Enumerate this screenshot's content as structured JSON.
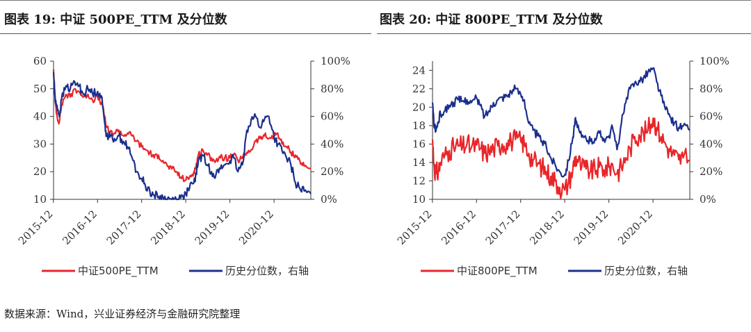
{
  "titles": {
    "left": "图表 19: 中证 500PE_TTM 及分位数",
    "right": "图表 20: 中证 800PE_TTM 及分位数"
  },
  "source": "数据来源：Wind，兴业证券经济与金融研究院整理",
  "colors": {
    "pe": "#e8262a",
    "pct": "#1c2f8c",
    "axis": "#333333"
  },
  "chart_data": [
    {
      "type": "line",
      "title": "图表 19: 中证 500PE_TTM 及分位数",
      "x_ticks": [
        "2015-12",
        "2016-12",
        "2017-12",
        "2018-12",
        "2019-12",
        "2020-12"
      ],
      "x_range": [
        2015.92,
        2021.75
      ],
      "y_left": {
        "range": [
          10,
          60
        ],
        "ticks": [
          "10",
          "20",
          "30",
          "40",
          "50",
          "60"
        ]
      },
      "y_right": {
        "range": [
          0,
          100
        ],
        "ticks": [
          "0%",
          "20%",
          "40%",
          "60%",
          "80%",
          "100%"
        ]
      },
      "legend": [
        "中证500PE_TTM",
        "历史分位数，右轴"
      ],
      "series": [
        {
          "name": "中证500PE_TTM",
          "axis": "left",
          "x": [
            2015.92,
            2015.96,
            2016.0,
            2016.05,
            2016.1,
            2016.2,
            2016.3,
            2016.4,
            2016.5,
            2016.6,
            2016.7,
            2016.8,
            2016.92,
            2017.0,
            2017.08,
            2017.12,
            2017.2,
            2017.3,
            2017.4,
            2017.5,
            2017.6,
            2017.7,
            2017.8,
            2017.92,
            2018.0,
            2018.1,
            2018.2,
            2018.3,
            2018.4,
            2018.5,
            2018.6,
            2018.7,
            2018.8,
            2018.92,
            2019.0,
            2019.1,
            2019.15,
            2019.2,
            2019.3,
            2019.4,
            2019.5,
            2019.6,
            2019.7,
            2019.8,
            2019.92,
            2020.0,
            2020.1,
            2020.2,
            2020.3,
            2020.4,
            2020.5,
            2020.6,
            2020.7,
            2020.8,
            2020.92,
            2021.0,
            2021.1,
            2021.2,
            2021.3,
            2021.4,
            2021.5,
            2021.6,
            2021.75
          ],
          "values": [
            57,
            45,
            40,
            38,
            44,
            48,
            47,
            50,
            49,
            47,
            48,
            46,
            47,
            45,
            40,
            36,
            34,
            34,
            35,
            33,
            34,
            33,
            31,
            29,
            28,
            27,
            25,
            26,
            24,
            22,
            21,
            20,
            18,
            17,
            18,
            20,
            22,
            26,
            28,
            26,
            25,
            24,
            25,
            25,
            25,
            26,
            24,
            25,
            27,
            28,
            31,
            32,
            33,
            32,
            33,
            34,
            30,
            29,
            27,
            26,
            24,
            22,
            21
          ]
        },
        {
          "name": "历史分位数，右轴",
          "axis": "right",
          "x": [
            2015.92,
            2015.96,
            2016.0,
            2016.05,
            2016.1,
            2016.2,
            2016.3,
            2016.4,
            2016.5,
            2016.6,
            2016.7,
            2016.8,
            2016.92,
            2017.0,
            2017.08,
            2017.12,
            2017.2,
            2017.3,
            2017.4,
            2017.5,
            2017.6,
            2017.7,
            2017.8,
            2017.92,
            2018.0,
            2018.1,
            2018.2,
            2018.3,
            2018.4,
            2018.5,
            2018.6,
            2018.7,
            2018.8,
            2018.92,
            2019.0,
            2019.1,
            2019.15,
            2019.2,
            2019.3,
            2019.4,
            2019.5,
            2019.6,
            2019.7,
            2019.8,
            2019.92,
            2020.0,
            2020.1,
            2020.2,
            2020.3,
            2020.4,
            2020.5,
            2020.6,
            2020.7,
            2020.8,
            2020.92,
            2021.0,
            2021.1,
            2021.2,
            2021.3,
            2021.4,
            2021.5,
            2021.6,
            2021.75
          ],
          "values": [
            92,
            70,
            68,
            60,
            72,
            82,
            80,
            85,
            82,
            76,
            80,
            77,
            78,
            75,
            55,
            47,
            45,
            44,
            46,
            42,
            38,
            30,
            20,
            15,
            10,
            6,
            3,
            2,
            1,
            0,
            0,
            0,
            1,
            4,
            8,
            12,
            18,
            28,
            32,
            25,
            20,
            18,
            22,
            25,
            28,
            30,
            20,
            25,
            50,
            58,
            60,
            52,
            58,
            60,
            45,
            40,
            35,
            30,
            25,
            12,
            8,
            6,
            4
          ]
        }
      ]
    },
    {
      "type": "line",
      "title": "图表 20: 中证 800PE_TTM 及分位数",
      "x_ticks": [
        "2015-12",
        "2016-12",
        "2017-12",
        "2018-12",
        "2019-12",
        "2020-12"
      ],
      "x_range": [
        2015.92,
        2021.75
      ],
      "y_left": {
        "range": [
          10,
          25
        ],
        "ticks": [
          "10",
          "12",
          "14",
          "16",
          "18",
          "20",
          "22",
          "24"
        ]
      },
      "y_right": {
        "range": [
          0,
          100
        ],
        "ticks": [
          "0%",
          "20%",
          "40%",
          "60%",
          "80%",
          "100%"
        ]
      },
      "legend": [
        "中证800PE_TTM",
        "历史分位数，右轴"
      ],
      "series": [
        {
          "name": "中证800PE_TTM",
          "axis": "left",
          "x": [
            2015.92,
            2015.96,
            2016.0,
            2016.05,
            2016.1,
            2016.2,
            2016.3,
            2016.4,
            2016.5,
            2016.6,
            2016.7,
            2016.8,
            2016.92,
            2017.0,
            2017.1,
            2017.2,
            2017.3,
            2017.4,
            2017.5,
            2017.6,
            2017.7,
            2017.8,
            2017.92,
            2018.0,
            2018.1,
            2018.2,
            2018.3,
            2018.4,
            2018.5,
            2018.6,
            2018.7,
            2018.8,
            2018.92,
            2019.0,
            2019.1,
            2019.15,
            2019.2,
            2019.3,
            2019.4,
            2019.5,
            2019.6,
            2019.7,
            2019.8,
            2019.92,
            2020.0,
            2020.1,
            2020.2,
            2020.3,
            2020.4,
            2020.5,
            2020.6,
            2020.7,
            2020.8,
            2020.92,
            2021.0,
            2021.1,
            2021.2,
            2021.3,
            2021.4,
            2021.5,
            2021.6,
            2021.75
          ],
          "values": [
            16.5,
            13.5,
            12.8,
            13.0,
            14.0,
            14.8,
            15.3,
            15.6,
            15.8,
            15.7,
            16.0,
            15.6,
            15.9,
            15.5,
            15.0,
            15.2,
            15.5,
            15.8,
            16.0,
            16.1,
            16.3,
            16.5,
            16.3,
            16.0,
            15.0,
            14.3,
            13.8,
            13.5,
            13.0,
            12.5,
            12.0,
            11.3,
            11.0,
            11.8,
            13.3,
            14.5,
            14.3,
            13.5,
            13.3,
            13.0,
            13.2,
            13.5,
            13.2,
            13.5,
            13.8,
            12.8,
            13.5,
            14.5,
            15.5,
            16.8,
            17.0,
            17.2,
            17.5,
            18.8,
            17.8,
            16.8,
            16.0,
            15.2,
            14.8,
            14.3,
            14.5,
            14.2
          ]
        },
        {
          "name": "历史分位数，右轴",
          "axis": "right",
          "x": [
            2015.92,
            2015.96,
            2016.0,
            2016.05,
            2016.1,
            2016.2,
            2016.3,
            2016.4,
            2016.5,
            2016.6,
            2016.7,
            2016.8,
            2016.92,
            2017.0,
            2017.1,
            2017.2,
            2017.3,
            2017.4,
            2017.5,
            2017.6,
            2017.7,
            2017.8,
            2017.92,
            2018.0,
            2018.1,
            2018.2,
            2018.3,
            2018.4,
            2018.5,
            2018.6,
            2018.7,
            2018.8,
            2018.92,
            2019.0,
            2019.1,
            2019.15,
            2019.2,
            2019.3,
            2019.4,
            2019.5,
            2019.6,
            2019.7,
            2019.8,
            2019.92,
            2020.0,
            2020.1,
            2020.2,
            2020.3,
            2020.4,
            2020.5,
            2020.6,
            2020.7,
            2020.8,
            2020.92,
            2021.0,
            2021.1,
            2021.2,
            2021.3,
            2021.4,
            2021.5,
            2021.6,
            2021.75
          ],
          "values": [
            70,
            52,
            50,
            56,
            62,
            64,
            68,
            70,
            72,
            71,
            72,
            70,
            73,
            68,
            60,
            64,
            70,
            72,
            74,
            75,
            78,
            80,
            76,
            72,
            55,
            50,
            46,
            42,
            38,
            30,
            25,
            20,
            18,
            28,
            45,
            58,
            52,
            45,
            44,
            42,
            44,
            48,
            44,
            46,
            52,
            36,
            55,
            70,
            80,
            84,
            86,
            88,
            92,
            95,
            85,
            75,
            65,
            60,
            55,
            52,
            53,
            50
          ]
        }
      ]
    }
  ]
}
